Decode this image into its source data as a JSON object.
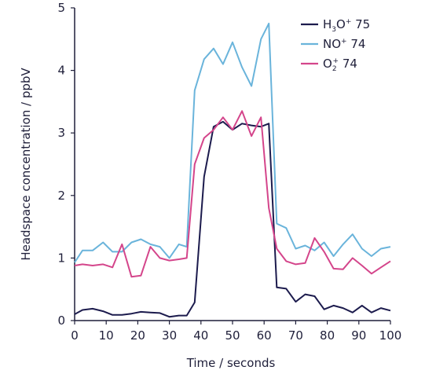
{
  "chart_data": {
    "type": "line",
    "title": "",
    "xlabel": "Time / seconds",
    "ylabel": "Headspace concentration / ppbV",
    "xlim": [
      0,
      100
    ],
    "ylim": [
      0,
      5
    ],
    "xticks": [
      0,
      10,
      20,
      30,
      40,
      50,
      60,
      70,
      80,
      90,
      100
    ],
    "yticks": [
      0,
      1,
      2,
      3,
      4,
      5
    ],
    "grid": false,
    "legend_position": "top-right",
    "x": [
      0,
      2.5,
      5.7,
      9,
      12,
      15,
      18,
      21,
      24,
      27,
      30,
      33,
      35.5,
      38,
      41,
      44,
      47,
      50,
      53,
      56,
      59,
      61.5,
      64,
      67,
      70,
      73,
      76,
      79,
      82,
      85,
      88,
      91,
      94,
      97,
      100
    ],
    "series": [
      {
        "name": "H3O+ 75",
        "legend_label": {
          "base": "H",
          "sub": "3",
          "mid": "O",
          "sup": "+",
          "tail": " 75"
        },
        "color": "#1c1b4d",
        "values": [
          0.1,
          0.17,
          0.19,
          0.15,
          0.09,
          0.09,
          0.11,
          0.14,
          0.13,
          0.12,
          0.06,
          0.08,
          0.08,
          0.29,
          2.3,
          3.1,
          3.18,
          3.05,
          3.15,
          3.12,
          3.1,
          3.15,
          0.53,
          0.51,
          0.3,
          0.42,
          0.39,
          0.18,
          0.24,
          0.2,
          0.13,
          0.24,
          0.13,
          0.2,
          0.16
        ]
      },
      {
        "name": "NO+ 74",
        "legend_label": {
          "base": "NO",
          "sub": "",
          "mid": "",
          "sup": "+",
          "tail": " 74"
        },
        "color": "#6ab4db",
        "values": [
          0.93,
          1.12,
          1.12,
          1.25,
          1.1,
          1.1,
          1.25,
          1.3,
          1.22,
          1.18,
          1.0,
          1.22,
          1.18,
          3.68,
          4.18,
          4.35,
          4.1,
          4.45,
          4.05,
          3.75,
          4.5,
          4.75,
          1.55,
          1.48,
          1.15,
          1.2,
          1.12,
          1.25,
          1.03,
          1.22,
          1.38,
          1.15,
          1.03,
          1.15,
          1.18
        ]
      },
      {
        "name": "O2+ 74",
        "legend_label": {
          "base": "O",
          "sub": "2",
          "mid": "",
          "sup": "+",
          "tail": " 74"
        },
        "color": "#d4458b",
        "values": [
          0.88,
          0.9,
          0.88,
          0.9,
          0.85,
          1.22,
          0.7,
          0.72,
          1.18,
          1.0,
          0.96,
          0.98,
          1.0,
          2.5,
          2.92,
          3.05,
          3.25,
          3.05,
          3.35,
          2.95,
          3.25,
          1.8,
          1.15,
          0.95,
          0.9,
          0.92,
          1.32,
          1.1,
          0.83,
          0.82,
          1.0,
          0.88,
          0.75,
          0.85,
          0.95
        ]
      }
    ]
  }
}
